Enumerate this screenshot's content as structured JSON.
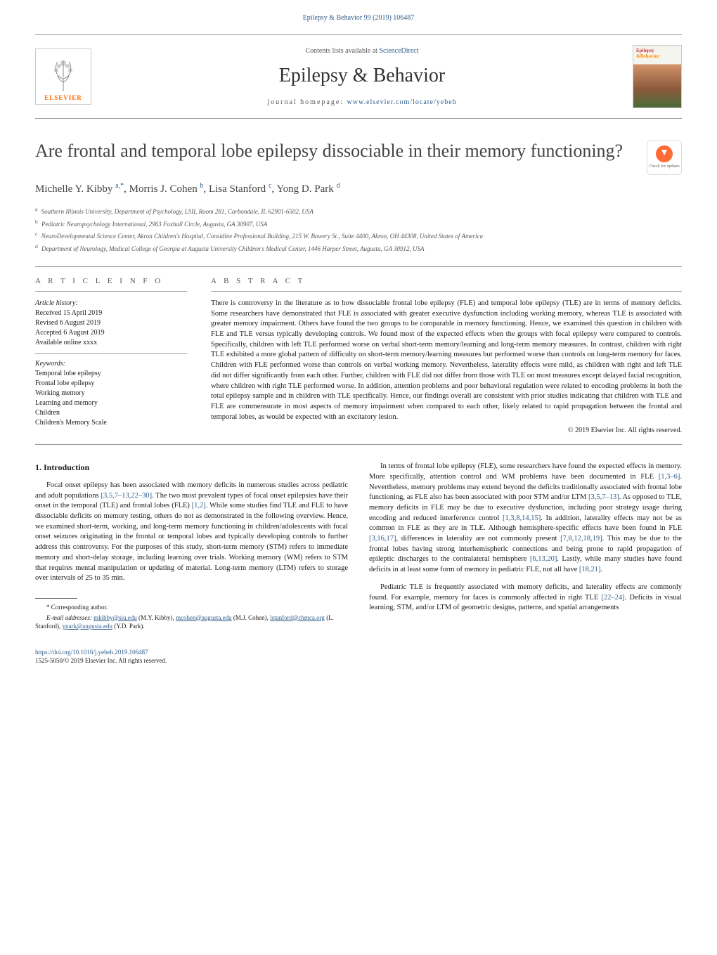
{
  "header": {
    "citation": "Epilepsy & Behavior 99 (2019) 106487",
    "contents_prefix": "Contents lists available at ",
    "contents_link": "ScienceDirect",
    "journal_title": "Epilepsy & Behavior",
    "homepage_prefix": "journal homepage: ",
    "homepage_link": "www.elsevier.com/locate/yebeh",
    "elsevier_label": "ELSEVIER",
    "cover_line1": "Epilepsy",
    "cover_line2": "&Behavior",
    "check_updates": "Check for updates"
  },
  "article": {
    "title": "Are frontal and temporal lobe epilepsy dissociable in their memory functioning?",
    "authors_html": "Michelle Y. Kibby <sup>a,*</sup>, Morris J. Cohen <sup>b</sup>, Lisa Stanford <sup>c</sup>, Yong D. Park <sup>d</sup>",
    "affiliations": {
      "a": "Southern Illinois University, Department of Psychology, LSII, Room 281, Carbondale, IL 62901-6502, USA",
      "b": "Pediatric Neuropsychology International, 2963 Foxhall Circle, Augusta, GA 30907, USA",
      "c": "NeuroDevelopmental Science Center, Akron Children's Hospital, Considine Professional Building, 215 W. Bowery St., Suite 4400, Akron, OH 44308, United States of America",
      "d": "Department of Neurology, Medical College of Georgia at Augusta University Children's Medical Center, 1446 Harper Street, Augusta, GA 30912, USA"
    }
  },
  "info": {
    "heading": "A R T I C L E   I N F O",
    "history_label": "Article history:",
    "received": "Received 15 April 2019",
    "revised": "Revised 6 August 2019",
    "accepted": "Accepted 6 August 2019",
    "available": "Available online xxxx",
    "keywords_label": "Keywords:",
    "keywords": [
      "Temporal lobe epilepsy",
      "Frontal lobe epilepsy",
      "Working memory",
      "Learning and memory",
      "Children",
      "Children's Memory Scale"
    ]
  },
  "abstract": {
    "heading": "A B S T R A C T",
    "text": "There is controversy in the literature as to how dissociable frontal lobe epilepsy (FLE) and temporal lobe epilepsy (TLE) are in terms of memory deficits. Some researchers have demonstrated that FLE is associated with greater executive dysfunction including working memory, whereas TLE is associated with greater memory impairment. Others have found the two groups to be comparable in memory functioning. Hence, we examined this question in children with FLE and TLE versus typically developing controls. We found most of the expected effects when the groups with focal epilepsy were compared to controls. Specifically, children with left TLE performed worse on verbal short-term memory/learning and long-term memory measures. In contrast, children with right TLE exhibited a more global pattern of difficulty on short-term memory/learning measures but performed worse than controls on long-term memory for faces. Children with FLE performed worse than controls on verbal working memory. Nevertheless, laterality effects were mild, as children with right and left TLE did not differ significantly from each other. Further, children with FLE did not differ from those with TLE on most measures except delayed facial recognition, where children with right TLE performed worse. In addition, attention problems and poor behavioral regulation were related to encoding problems in both the total epilepsy sample and in children with TLE specifically. Hence, our findings overall are consistent with prior studies indicating that children with TLE and FLE are commensurate in most aspects of memory impairment when compared to each other, likely related to rapid propagation between the frontal and temporal lobes, as would be expected with an excitatory lesion.",
    "copyright": "© 2019 Elsevier Inc. All rights reserved."
  },
  "body": {
    "intro_heading": "1. Introduction",
    "col1_p1": "Focal onset epilepsy has been associated with memory deficits in numerous studies across pediatric and adult populations [3,5,7–13,22–30]. The two most prevalent types of focal onset epilepsies have their onset in the temporal (TLE) and frontal lobes (FLE) [1,2]. While some studies find TLE and FLE to have dissociable deficits on memory testing, others do not as demonstrated in the following overview. Hence, we examined short-term, working, and long-term memory functioning in children/adolescents with focal onset seizures originating in the frontal or temporal lobes and typically developing controls to further address this controversy. For the purposes of this study, short-term memory (STM) refers to immediate memory and short-delay storage, including learning over trials. Working memory (WM) refers to STM that requires mental manipulation or updating of material. Long-term memory (LTM) refers to storage over intervals of 25 to 35 min.",
    "col2_p1": "In terms of frontal lobe epilepsy (FLE), some researchers have found the expected effects in memory. More specifically, attention control and WM problems have been documented in FLE [1,3–6]. Nevertheless, memory problems may extend beyond the deficits traditionally associated with frontal lobe functioning, as FLE also has been associated with poor STM and/or LTM [3,5,7–13]. As opposed to TLE, memory deficits in FLE may be due to executive dysfunction, including poor strategy usage during encoding and reduced interference control [1,3,8,14,15]. In addition, laterality effects may not be as common in FLE as they are in TLE. Although hemisphere-specific effects have been found in FLE [3,16,17], differences in laterality are not commonly present [7,8,12,18,19]. This may be due to the frontal lobes having strong interhemispheric connections and being prone to rapid propagation of epileptic discharges to the contralateral hemisphere [6,13,20]. Lastly, while many studies have found deficits in at least some form of memory in pediatric FLE, not all have [18,21].",
    "col2_p2": "Pediatric TLE is frequently associated with memory deficits, and laterality effects are commonly found. For example, memory for faces is commonly affected in right TLE [22–24]. Deficits in visual learning, STM, and/or LTM of geometric designs, patterns, and spatial arrangements"
  },
  "footnote": {
    "corresponding": "Corresponding author.",
    "emails_prefix": "E-mail addresses: ",
    "emails": [
      {
        "addr": "mkibby@siu.edu",
        "who": "(M.Y. Kibby)"
      },
      {
        "addr": "mcohen@augusta.edu",
        "who": "(M.J. Cohen)"
      },
      {
        "addr": "lstanford@chmca.org",
        "who": "(L. Stanford)"
      },
      {
        "addr": "ypark@augusta.edu",
        "who": "(Y.D. Park)"
      }
    ]
  },
  "footer": {
    "doi": "https://doi.org/10.1016/j.yebeh.2019.106487",
    "issn_copyright": "1525-5050/© 2019 Elsevier Inc. All rights reserved."
  },
  "colors": {
    "link": "#2e5c8a",
    "elsevier_orange": "#ff6600",
    "text": "#1a1a1a",
    "rule": "#999999"
  },
  "typography": {
    "body_pt": 10.5,
    "title_pt": 26,
    "journal_title_pt": 28,
    "authors_pt": 15,
    "affil_pt": 9,
    "footnote_pt": 9
  }
}
